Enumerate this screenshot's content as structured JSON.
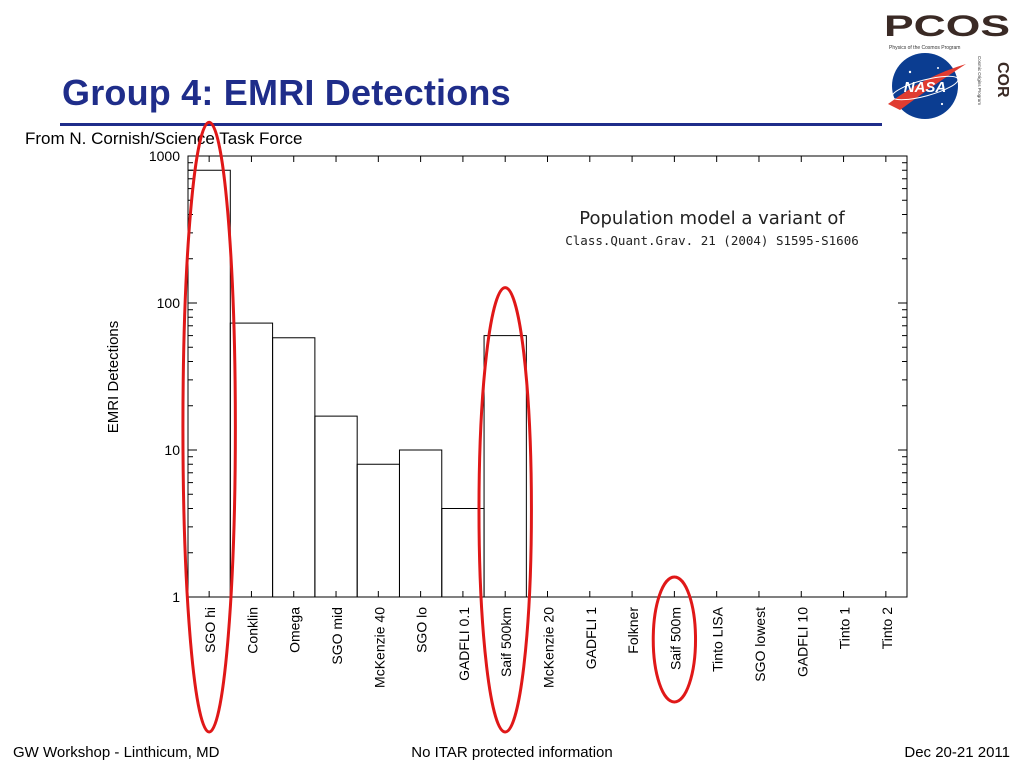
{
  "slide": {
    "title": "Group 4: EMRI Detections",
    "source_note": "From N. Cornish/Science Task Force"
  },
  "logos": {
    "pcos_text": "PCOS",
    "pcos_caption": "Physics of the Cosmos Program",
    "cor_text": "COR",
    "cor_caption": "Cosmic Origins Program",
    "nasa_text": "NASA",
    "colors": {
      "pcos": "#3a2a25",
      "nasa_blue": "#0b3d91",
      "nasa_red": "#e03c31"
    }
  },
  "footer": {
    "left": "GW Workshop - Linthicum, MD",
    "center": "No ITAR protected information",
    "right": "Dec 20-21 2011"
  },
  "chart_data": {
    "type": "bar",
    "ylabel": "EMRI Detections",
    "xlabel": "",
    "yscale": "log",
    "ylim": [
      1,
      1000
    ],
    "yticks": [
      {
        "value": 1,
        "label": "1"
      },
      {
        "value": 10,
        "label": "10"
      },
      {
        "value": 100,
        "label": "100"
      },
      {
        "value": 1000,
        "label": "1000"
      }
    ],
    "annotation": {
      "line1": "Population model a variant of",
      "line2": "Class.Quant.Grav. 21 (2004) S1595-S1606"
    },
    "categories": [
      "SGO hi",
      "Conklin",
      "Omega",
      "SGO mid",
      "McKenzie 40",
      "SGO lo",
      "GADFLI 0.1",
      "Saif 500km",
      "McKenzie 20",
      "GADFLI 1",
      "Folkner",
      "Saif 500m",
      "Tinto LISA",
      "SGO lowest",
      "GADFLI 10",
      "Tinto 1",
      "Tinto 2"
    ],
    "values": [
      800,
      73,
      58,
      17,
      8,
      10,
      4,
      60,
      0,
      0,
      0,
      0,
      0,
      0,
      0,
      0,
      0
    ],
    "highlighted": [
      "SGO hi",
      "Saif 500km",
      "Saif 500m"
    ],
    "highlight_color": "#e01818"
  }
}
